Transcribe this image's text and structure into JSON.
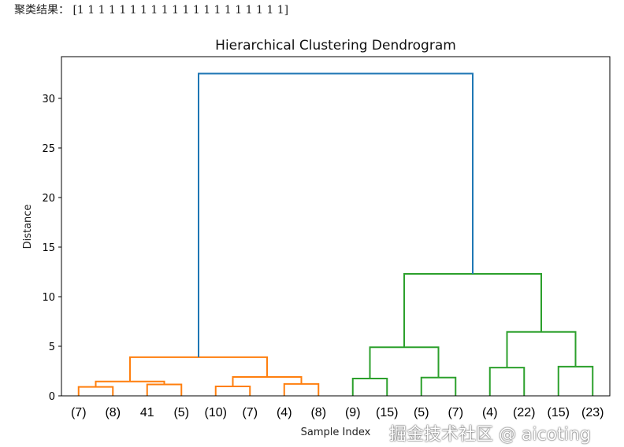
{
  "result_text": {
    "label": "聚类结果：",
    "values": "[1 1 1 1 1 1 1 1 1 1 1 1 1 1 1 1 1 1 1 1]"
  },
  "watermark": "掘金技术社区 @ aicoting",
  "chart_data": {
    "type": "dendrogram",
    "title": "Hierarchical Clustering Dendrogram",
    "xlabel": "Sample Index",
    "ylabel": "Distance",
    "xlim": [
      0,
      160
    ],
    "ylim": [
      0,
      33
    ],
    "yticks": [
      0,
      5,
      10,
      15,
      20,
      25,
      30
    ],
    "leaf_labels": [
      "(7)",
      "(8)",
      "41",
      "(5)",
      "(10)",
      "(7)",
      "(4)",
      "(8)",
      "(9)",
      "(15)",
      "(5)",
      "(7)",
      "(4)",
      "(22)",
      "(15)",
      "(23)"
    ],
    "colors": {
      "orange": "#ff7f0e",
      "green": "#2ca02c",
      "blue": "#1f77b4"
    },
    "links": [
      {
        "x": [
          5,
          5,
          15,
          15
        ],
        "y": [
          0,
          0.9,
          0.9,
          0
        ],
        "color": "#ff7f0e"
      },
      {
        "x": [
          25,
          25,
          35,
          35
        ],
        "y": [
          0,
          1.15,
          1.15,
          0
        ],
        "color": "#ff7f0e"
      },
      {
        "x": [
          10,
          10,
          30,
          30
        ],
        "y": [
          0.9,
          1.45,
          1.45,
          1.15
        ],
        "color": "#ff7f0e"
      },
      {
        "x": [
          45,
          45,
          55,
          55
        ],
        "y": [
          0,
          0.95,
          0.95,
          0
        ],
        "color": "#ff7f0e"
      },
      {
        "x": [
          65,
          65,
          75,
          75
        ],
        "y": [
          0,
          1.2,
          1.2,
          0
        ],
        "color": "#ff7f0e"
      },
      {
        "x": [
          50,
          50,
          70,
          70
        ],
        "y": [
          0.95,
          1.9,
          1.9,
          1.2
        ],
        "color": "#ff7f0e"
      },
      {
        "x": [
          20,
          20,
          60,
          60
        ],
        "y": [
          1.45,
          3.9,
          3.9,
          1.9
        ],
        "color": "#ff7f0e"
      },
      {
        "x": [
          85,
          85,
          95,
          95
        ],
        "y": [
          0,
          1.75,
          1.75,
          0
        ],
        "color": "#2ca02c"
      },
      {
        "x": [
          105,
          105,
          115,
          115
        ],
        "y": [
          0,
          1.85,
          1.85,
          0
        ],
        "color": "#2ca02c"
      },
      {
        "x": [
          90,
          90,
          110,
          110
        ],
        "y": [
          1.75,
          4.9,
          4.9,
          1.85
        ],
        "color": "#2ca02c"
      },
      {
        "x": [
          125,
          125,
          135,
          135
        ],
        "y": [
          0,
          2.85,
          2.85,
          0
        ],
        "color": "#2ca02c"
      },
      {
        "x": [
          145,
          145,
          155,
          155
        ],
        "y": [
          0,
          2.95,
          2.95,
          0
        ],
        "color": "#2ca02c"
      },
      {
        "x": [
          130,
          130,
          150,
          150
        ],
        "y": [
          2.85,
          6.45,
          6.45,
          2.95
        ],
        "color": "#2ca02c"
      },
      {
        "x": [
          100,
          100,
          140,
          140
        ],
        "y": [
          4.9,
          12.3,
          12.3,
          6.45
        ],
        "color": "#2ca02c"
      },
      {
        "x": [
          40,
          40,
          120,
          120
        ],
        "y": [
          3.9,
          32.5,
          32.5,
          12.3
        ],
        "color": "#1f77b4"
      }
    ]
  }
}
